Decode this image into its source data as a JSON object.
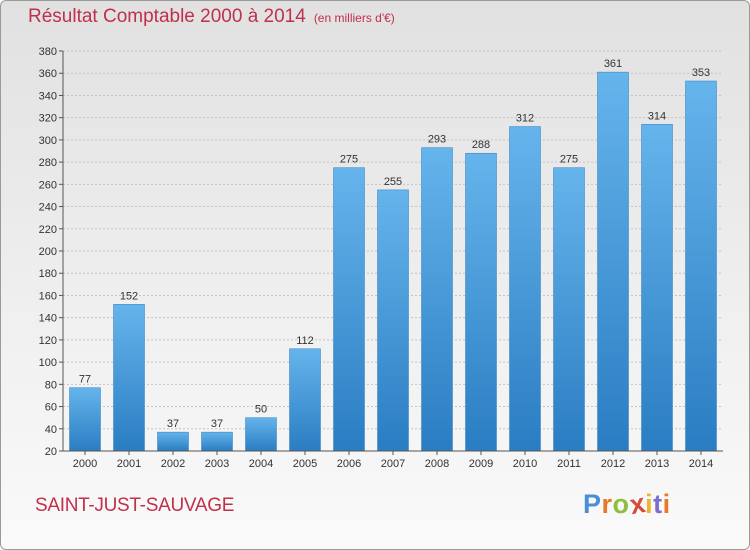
{
  "title": "Résultat Comptable 2000 à 2014",
  "subtitle": "(en milliers d'€)",
  "place": "SAINT-JUST-SAUVAGE",
  "logo": {
    "letters": [
      "P",
      "r",
      "o",
      "x",
      "i",
      "t",
      "i"
    ],
    "colors": [
      "#4c8fd6",
      "#e8792a",
      "#8cbf3f",
      "#d64a3a",
      "#f0b429",
      "#7a6fd0",
      "#e8792a"
    ]
  },
  "colors": {
    "bar_light": "#66b4ec",
    "bar_dark": "#2a7dc2",
    "title": "#c0304a"
  },
  "chart_data": {
    "type": "bar",
    "title": "Résultat Comptable 2000 à 2014",
    "ylabel": "",
    "xlabel": "",
    "categories": [
      "2000",
      "2001",
      "2002",
      "2003",
      "2004",
      "2005",
      "2006",
      "2007",
      "2008",
      "2009",
      "2010",
      "2011",
      "2012",
      "2013",
      "2014"
    ],
    "values": [
      77,
      152,
      37,
      37,
      50,
      112,
      275,
      255,
      293,
      288,
      312,
      275,
      361,
      314,
      353
    ],
    "ylim": [
      20,
      380
    ],
    "yticks": [
      20,
      40,
      60,
      80,
      100,
      120,
      140,
      160,
      180,
      200,
      220,
      240,
      260,
      280,
      300,
      320,
      340,
      360,
      380
    ],
    "grid": true
  }
}
